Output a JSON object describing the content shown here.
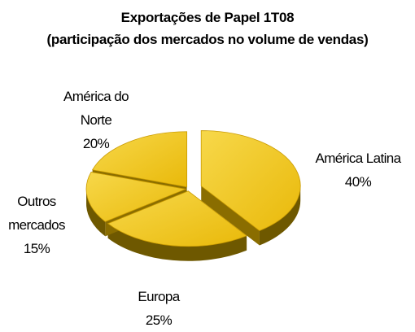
{
  "chart_data": {
    "type": "pie",
    "title": "Exportações de Papel 1T08",
    "subtitle": "(participação dos mercados no volume de vendas)",
    "categories": [
      "América Latina",
      "Europa",
      "Outros mercados",
      "América do Norte"
    ],
    "values": [
      40,
      25,
      15,
      20
    ],
    "value_labels": [
      "40%",
      "25%",
      "15%",
      "20%"
    ],
    "color": "#e9b90a"
  }
}
